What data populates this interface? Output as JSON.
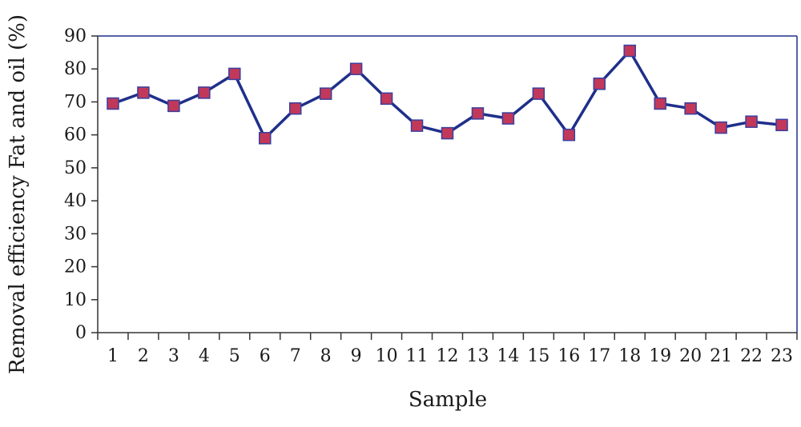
{
  "chart_data": {
    "type": "line",
    "title": "",
    "xlabel": "Sample",
    "ylabel": "Removal efficiency Fat and oil (%)",
    "categories": [
      "1",
      "2",
      "3",
      "4",
      "5",
      "6",
      "7",
      "8",
      "9",
      "10",
      "11",
      "12",
      "13",
      "14",
      "15",
      "16",
      "17",
      "18",
      "19",
      "20",
      "21",
      "22",
      "23"
    ],
    "series": [
      {
        "values": [
          69.5,
          72.8,
          68.8,
          72.8,
          78.5,
          59.0,
          68.0,
          72.5,
          80.0,
          71.0,
          62.8,
          60.5,
          66.5,
          65.0,
          72.5,
          60.0,
          75.5,
          85.5,
          69.5,
          68.0,
          62.2,
          64.0,
          63.0
        ]
      }
    ],
    "ylim": [
      0,
      90
    ],
    "yticks": [
      0,
      10,
      20,
      30,
      40,
      50,
      60,
      70,
      80,
      90
    ],
    "grid": false,
    "legend": "none",
    "colors": {
      "line": "#1f2f8a",
      "marker_fill": "#c2385a",
      "marker_stroke": "#3a3f9e",
      "frame": "#1f2f8a",
      "axis": "#333333"
    }
  }
}
